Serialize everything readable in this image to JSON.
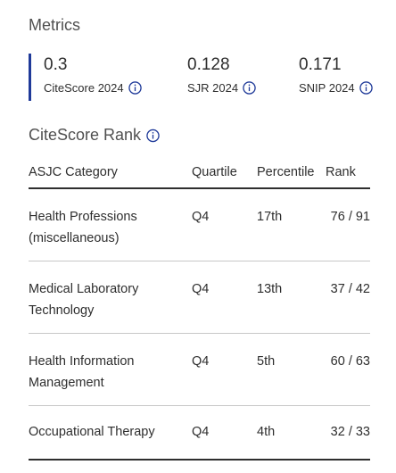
{
  "header": {
    "title": "Metrics"
  },
  "metrics": [
    {
      "value": "0.3",
      "label": "CiteScore 2024",
      "icon": "info-icon"
    },
    {
      "value": "0.128",
      "label": "SJR 2024",
      "icon": "info-icon"
    },
    {
      "value": "0.171",
      "label": "SNIP 2024",
      "icon": "info-icon"
    }
  ],
  "rank": {
    "title": "CiteScore Rank",
    "columns": [
      "ASJC Category",
      "Quartile",
      "Percentile",
      "Rank"
    ],
    "rows": [
      {
        "category_line1": "Health Professions",
        "category_line2": "(miscellaneous)",
        "quartile": "Q4",
        "percentile": "17th",
        "rank": "76 / 91"
      },
      {
        "category_line1": "Medical Laboratory",
        "category_line2": "Technology",
        "quartile": "Q4",
        "percentile": "13th",
        "rank": "37 / 42"
      },
      {
        "category_line1": "Health Information",
        "category_line2": "Management",
        "quartile": "Q4",
        "percentile": "5th",
        "rank": "60 / 63"
      },
      {
        "category_line1": "Occupational Therapy",
        "category_line2": "",
        "quartile": "Q4",
        "percentile": "4th",
        "rank": "32 / 33"
      }
    ]
  },
  "colors": {
    "accent": "#1f3a99",
    "text": "#2e2e2e",
    "muted": "#505050",
    "divider": "#c8c8c8"
  }
}
